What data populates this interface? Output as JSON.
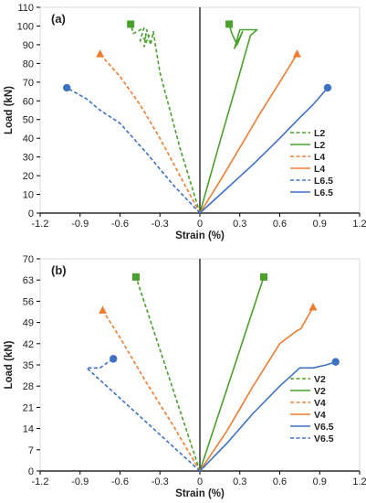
{
  "colors": {
    "green": "#4aa02c",
    "orange": "#ee7d31",
    "blue": "#3f71c2",
    "axis": "#000000",
    "grid": "#d9d9d9"
  },
  "chart_data": [
    {
      "type": "line",
      "panel_label": "(a)",
      "xlabel": "Strain (%)",
      "ylabel": "Load (kN)",
      "xlim": [
        -1.2,
        1.2
      ],
      "ylim": [
        0,
        110
      ],
      "xticks": [
        -1.2,
        -0.9,
        -0.6,
        -0.3,
        0,
        0.3,
        0.6,
        0.9,
        1.2
      ],
      "xtick_labels": [
        "-1.2",
        "-0.9",
        "-0.6",
        "-0.3",
        "0",
        "0.3",
        "0.6",
        "0.9",
        "1.2"
      ],
      "yticks": [
        0,
        10,
        20,
        30,
        40,
        50,
        60,
        70,
        80,
        90,
        100,
        110
      ],
      "ytick_labels": [
        "0",
        "10",
        "20",
        "30",
        "40",
        "50",
        "60",
        "70",
        "80",
        "90",
        "100",
        "110"
      ],
      "grid": false,
      "legend_position": "bottom-right",
      "series": [
        {
          "name": "L2",
          "color": "green",
          "dash": true,
          "marker": "square",
          "x": [
            0,
            -0.15,
            -0.3,
            -0.33,
            -0.35,
            -0.37,
            -0.4,
            -0.42,
            -0.38,
            -0.45,
            -0.42,
            -0.5,
            -0.52
          ],
          "y": [
            0,
            35,
            75,
            88,
            97,
            90,
            98,
            89,
            95,
            92,
            99,
            96,
            101
          ]
        },
        {
          "name": "L2",
          "color": "green",
          "dash": false,
          "marker": "square",
          "x": [
            0,
            0.15,
            0.3,
            0.38,
            0.43,
            0.3,
            0.26,
            0.32,
            0.28,
            0.24,
            0.22
          ],
          "y": [
            0,
            38,
            75,
            95,
            98,
            98,
            88,
            97,
            90,
            96,
            101
          ]
        },
        {
          "name": "L4",
          "color": "orange",
          "dash": true,
          "marker": "triangle",
          "x": [
            0,
            -0.15,
            -0.3,
            -0.45,
            -0.6,
            -0.75
          ],
          "y": [
            0,
            20,
            40,
            58,
            73,
            85
          ]
        },
        {
          "name": "L4",
          "color": "orange",
          "dash": false,
          "marker": "triangle",
          "x": [
            0,
            0.15,
            0.3,
            0.45,
            0.6,
            0.73
          ],
          "y": [
            0,
            17,
            35,
            53,
            70,
            85
          ]
        },
        {
          "name": "L6.5",
          "color": "blue",
          "dash": true,
          "marker": "circle",
          "x": [
            0,
            -0.2,
            -0.4,
            -0.6,
            -0.75,
            -0.85,
            -1.0
          ],
          "y": [
            0,
            15,
            32,
            48,
            55,
            61,
            67
          ]
        },
        {
          "name": "L6.5",
          "color": "blue",
          "dash": false,
          "marker": "circle",
          "x": [
            0,
            0.2,
            0.4,
            0.6,
            0.75,
            0.85,
            0.96
          ],
          "y": [
            0,
            13,
            26,
            40,
            51,
            58,
            67
          ]
        }
      ]
    },
    {
      "type": "line",
      "panel_label": "(b)",
      "xlabel": "Strain (%)",
      "ylabel": "Load (kN)",
      "xlim": [
        -1.2,
        1.2
      ],
      "ylim": [
        0,
        70
      ],
      "xticks": [
        -1.2,
        -0.9,
        -0.6,
        -0.3,
        0,
        0.3,
        0.6,
        0.9,
        1.2
      ],
      "xtick_labels": [
        "-1.2",
        "-0.9",
        "-0.6",
        "-0.3",
        "0",
        "0.3",
        "0.6",
        "0.9",
        "1.2"
      ],
      "yticks": [
        0,
        7,
        14,
        21,
        28,
        35,
        42,
        49,
        56,
        63,
        70
      ],
      "ytick_labels": [
        "0",
        "7",
        "14",
        "21",
        "28",
        "35",
        "42",
        "49",
        "56",
        "63",
        "70"
      ],
      "grid": false,
      "legend_position": "bottom-right",
      "series": [
        {
          "name": "V2",
          "color": "green",
          "dash": true,
          "marker": "square",
          "x": [
            0,
            -0.15,
            -0.3,
            -0.48
          ],
          "y": [
            0,
            20,
            40,
            64
          ]
        },
        {
          "name": "V2",
          "color": "green",
          "dash": false,
          "marker": "square",
          "x": [
            0,
            0.15,
            0.3,
            0.48
          ],
          "y": [
            0,
            20,
            40,
            64
          ]
        },
        {
          "name": "V4",
          "color": "orange",
          "dash": true,
          "marker": "triangle",
          "x": [
            0,
            -0.2,
            -0.4,
            -0.6,
            -0.73
          ],
          "y": [
            0,
            15,
            29,
            44,
            53
          ]
        },
        {
          "name": "V4",
          "color": "orange",
          "dash": false,
          "marker": "triangle",
          "x": [
            0,
            0.2,
            0.4,
            0.6,
            0.72,
            0.76,
            0.85
          ],
          "y": [
            0,
            13,
            28,
            42,
            46,
            47,
            54
          ]
        },
        {
          "name": "V6.5",
          "color": "blue",
          "dash": false,
          "marker": "circle",
          "x": [
            0,
            0.2,
            0.4,
            0.6,
            0.75,
            0.85,
            0.95,
            1.02
          ],
          "y": [
            0,
            9,
            19,
            28,
            34,
            34,
            35,
            36
          ]
        },
        {
          "name": "V6.5",
          "color": "blue",
          "dash": true,
          "marker": "circle",
          "x": [
            0,
            -0.2,
            -0.4,
            -0.6,
            -0.75,
            -0.85,
            -0.75,
            -0.72,
            -0.65
          ],
          "y": [
            0,
            8,
            16,
            24,
            30,
            34,
            34,
            35,
            37
          ]
        }
      ]
    }
  ]
}
